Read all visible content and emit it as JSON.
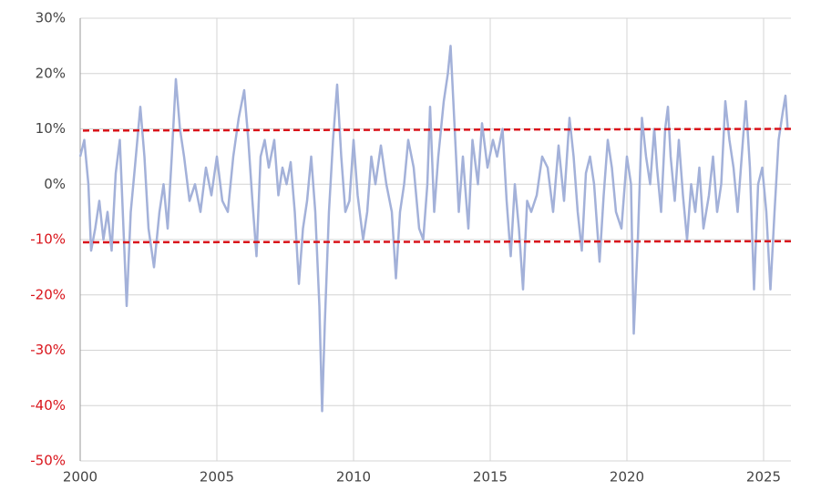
{
  "chart_data": {
    "type": "line",
    "x": [
      2000.0,
      2000.15,
      2000.3,
      2000.4,
      2000.55,
      2000.7,
      2000.85,
      2001.0,
      2001.15,
      2001.3,
      2001.45,
      2001.6,
      2001.7,
      2001.85,
      2002.0,
      2002.2,
      2002.35,
      2002.5,
      2002.7,
      2002.9,
      2003.05,
      2003.2,
      2003.35,
      2003.5,
      2003.65,
      2003.8,
      2004.0,
      2004.2,
      2004.4,
      2004.6,
      2004.8,
      2005.0,
      2005.2,
      2005.4,
      2005.6,
      2005.8,
      2006.0,
      2006.15,
      2006.3,
      2006.45,
      2006.6,
      2006.75,
      2006.9,
      2007.1,
      2007.25,
      2007.4,
      2007.55,
      2007.7,
      2007.85,
      2008.0,
      2008.15,
      2008.3,
      2008.45,
      2008.6,
      2008.75,
      2008.85,
      2008.95,
      2009.1,
      2009.25,
      2009.4,
      2009.55,
      2009.7,
      2009.85,
      2010.0,
      2010.15,
      2010.35,
      2010.5,
      2010.65,
      2010.8,
      2011.0,
      2011.2,
      2011.4,
      2011.55,
      2011.7,
      2011.85,
      2012.0,
      2012.2,
      2012.4,
      2012.55,
      2012.7,
      2012.8,
      2012.95,
      2013.1,
      2013.3,
      2013.45,
      2013.55,
      2013.7,
      2013.85,
      2014.0,
      2014.2,
      2014.35,
      2014.55,
      2014.7,
      2014.9,
      2015.1,
      2015.25,
      2015.45,
      2015.6,
      2015.75,
      2015.9,
      2016.05,
      2016.2,
      2016.35,
      2016.5,
      2016.7,
      2016.9,
      2017.1,
      2017.3,
      2017.5,
      2017.7,
      2017.9,
      2018.05,
      2018.2,
      2018.35,
      2018.5,
      2018.65,
      2018.8,
      2019.0,
      2019.15,
      2019.3,
      2019.45,
      2019.6,
      2019.8,
      2020.0,
      2020.15,
      2020.25,
      2020.4,
      2020.55,
      2020.7,
      2020.85,
      2021.0,
      2021.1,
      2021.25,
      2021.4,
      2021.5,
      2021.6,
      2021.75,
      2021.9,
      2022.05,
      2022.2,
      2022.35,
      2022.5,
      2022.65,
      2022.8,
      2023.0,
      2023.15,
      2023.3,
      2023.45,
      2023.6,
      2023.75,
      2023.9,
      2024.05,
      2024.2,
      2024.35,
      2024.5,
      2024.65,
      2024.8,
      2024.95,
      2025.1,
      2025.25,
      2025.4,
      2025.55,
      2025.7,
      2025.8,
      2025.88
    ],
    "series": [
      {
        "color": "#a3b1d9",
        "values": [
          5,
          8,
          0,
          -12,
          -8,
          -3,
          -10,
          -5,
          -12,
          2,
          8,
          -10,
          -22,
          -5,
          3,
          14,
          5,
          -8,
          -15,
          -5,
          0,
          -8,
          5,
          19,
          10,
          5,
          -3,
          0,
          -5,
          3,
          -2,
          5,
          -3,
          -5,
          5,
          12,
          17,
          8,
          -3,
          -13,
          5,
          8,
          3,
          8,
          -2,
          3,
          0,
          4,
          -5,
          -18,
          -8,
          -3,
          5,
          -5,
          -22,
          -41,
          -25,
          -5,
          8,
          18,
          5,
          -5,
          -3,
          8,
          -2,
          -10,
          -5,
          5,
          0,
          7,
          0,
          -5,
          -17,
          -5,
          0,
          8,
          3,
          -8,
          -10,
          0,
          14,
          -5,
          5,
          15,
          20,
          25,
          10,
          -5,
          5,
          -8,
          8,
          0,
          11,
          3,
          8,
          5,
          10,
          -3,
          -13,
          0,
          -8,
          -19,
          -3,
          -5,
          -2,
          5,
          3,
          -5,
          7,
          -3,
          12,
          5,
          -5,
          -12,
          2,
          5,
          0,
          -14,
          -2,
          8,
          3,
          -5,
          -8,
          5,
          0,
          -27,
          -10,
          12,
          5,
          0,
          10,
          3,
          -5,
          10,
          14,
          5,
          -3,
          8,
          -2,
          -10,
          0,
          -5,
          3,
          -8,
          -2,
          5,
          -5,
          0,
          15,
          8,
          3,
          -5,
          5,
          15,
          3,
          -19,
          0,
          3,
          -5,
          -19,
          -5,
          8,
          13,
          16,
          10
        ]
      }
    ],
    "reference_lines": [
      {
        "x": [
          2000.1,
          2026
        ],
        "y": [
          9.7,
          10
        ],
        "color": "#d9141b"
      },
      {
        "x": [
          2000.1,
          2026
        ],
        "y": [
          -10.5,
          -10.3
        ],
        "color": "#d9141b"
      }
    ],
    "xlim": [
      2000,
      2026
    ],
    "xticks": [
      2000,
      2005,
      2010,
      2015,
      2020,
      2025
    ],
    "ylim": [
      -50,
      30
    ],
    "yticks": [
      {
        "value": -50,
        "label": "-50%"
      },
      {
        "value": -40,
        "label": "-40%"
      },
      {
        "value": -30,
        "label": "-30%"
      },
      {
        "value": -20,
        "label": "-20%"
      },
      {
        "value": -10,
        "label": "-10%"
      },
      {
        "value": 0,
        "label": "0%"
      },
      {
        "value": 10,
        "label": "10%"
      },
      {
        "value": 20,
        "label": "20%"
      },
      {
        "value": 30,
        "label": "30%"
      }
    ],
    "grid": true,
    "tick_color": "#444444",
    "negative_tick_color": "#d9141b"
  }
}
